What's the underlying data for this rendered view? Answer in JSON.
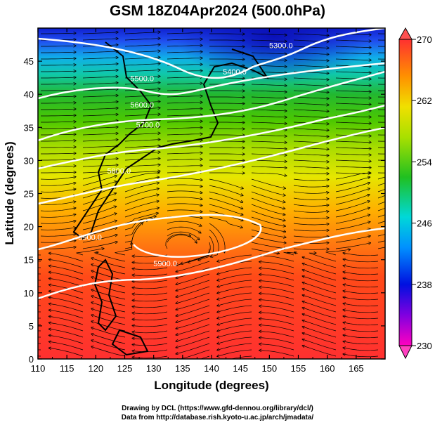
{
  "title": "GSM 18Z04Apr2024 (500.0hPa)",
  "map": {
    "xlabel": "Longitude (degrees)",
    "ylabel": "Latitude  (degrees)",
    "xlim": [
      110,
      170
    ],
    "ylim": [
      0,
      50
    ],
    "x_ticks": [
      "110",
      "115",
      "120",
      "125",
      "130",
      "135",
      "140",
      "145",
      "150",
      "155",
      "160",
      "165"
    ],
    "y_ticks": [
      "0",
      "5",
      "10",
      "15",
      "20",
      "25",
      "30",
      "35",
      "40",
      "45"
    ],
    "contour_labels": [
      {
        "text": "5900.0",
        "lon": 132,
        "lat": 14
      },
      {
        "text": "5900.0",
        "lon": 119,
        "lat": 18
      },
      {
        "text": "5800.0",
        "lon": 124,
        "lat": 28
      },
      {
        "text": "5700.0",
        "lon": 129,
        "lat": 35
      },
      {
        "text": "5600.0",
        "lon": 128,
        "lat": 38
      },
      {
        "text": "5500.0",
        "lon": 128,
        "lat": 42
      },
      {
        "text": "5400.0",
        "lon": 144,
        "lat": 43
      },
      {
        "text": "5300.0",
        "lon": 152,
        "lat": 47
      }
    ]
  },
  "colorbar": {
    "ticks": [
      "270",
      "262",
      "254",
      "246",
      "238",
      "230"
    ],
    "min": 230,
    "max": 270
  },
  "credits": {
    "line1": "Drawing by DCL (https://www.gfd-dennou.org/library/dcl/)",
    "line2": "Data from http://database.rish.kyoto-u.ac.jp/arch/jmadata/"
  }
}
